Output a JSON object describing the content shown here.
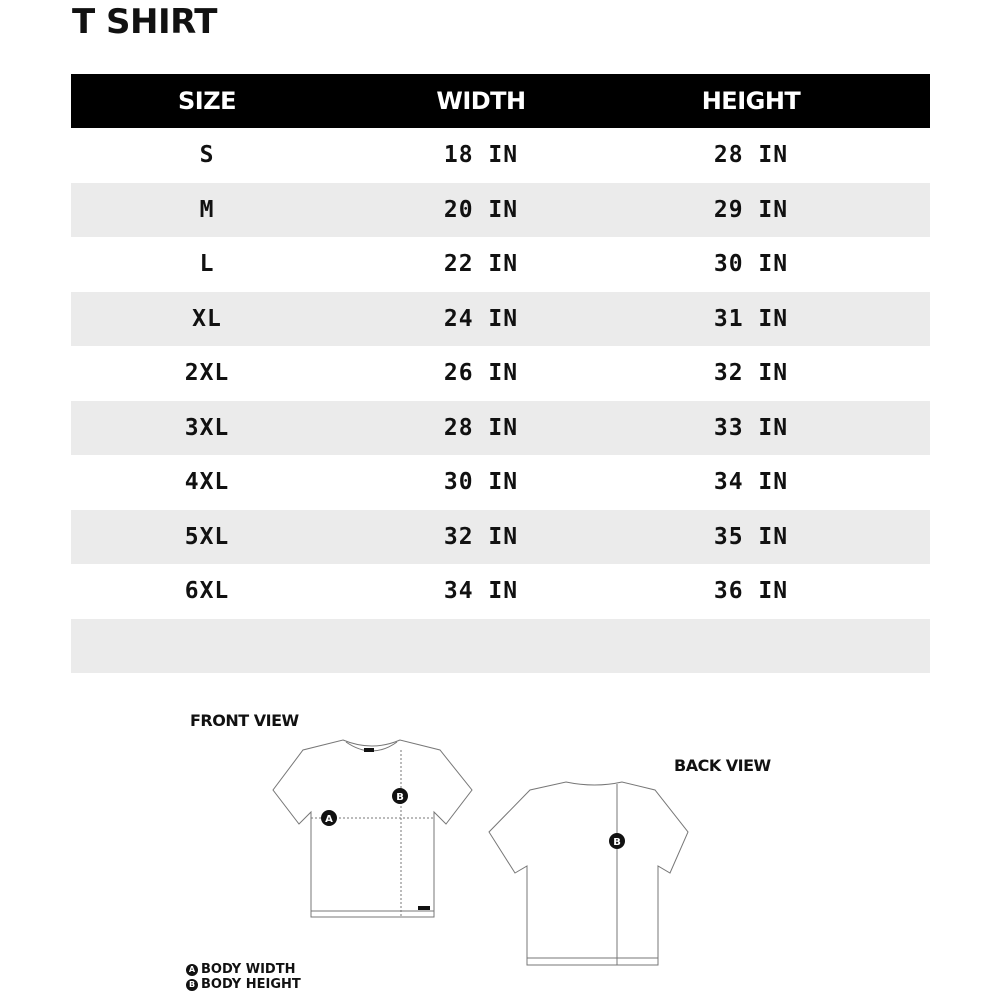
{
  "title": "T SHIRT",
  "table": {
    "headers": [
      "SIZE",
      "WIDTH",
      "HEIGHT"
    ],
    "rows": [
      [
        "S",
        "18 IN",
        "28 IN"
      ],
      [
        "M",
        "20 IN",
        "29 IN"
      ],
      [
        "L",
        "22 IN",
        "30 IN"
      ],
      [
        "XL",
        "24 IN",
        "31 IN"
      ],
      [
        "2XL",
        "26 IN",
        "32 IN"
      ],
      [
        "3XL",
        "28 IN",
        "33 IN"
      ],
      [
        "4XL",
        "30 IN",
        "34 IN"
      ],
      [
        "5XL",
        "32 IN",
        "35 IN"
      ],
      [
        "6XL",
        "34 IN",
        "36 IN"
      ],
      [
        "",
        "",
        ""
      ]
    ]
  },
  "diagram": {
    "front_label": "FRONT VIEW",
    "back_label": "BACK VIEW",
    "marker_a": "A",
    "marker_b": "B"
  },
  "legend": [
    {
      "marker": "A",
      "label": "BODY WIDTH"
    },
    {
      "marker": "B",
      "label": "BODY HEIGHT"
    }
  ]
}
